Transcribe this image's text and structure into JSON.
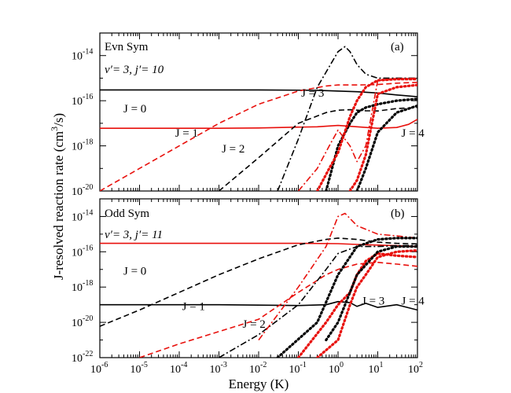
{
  "figure": {
    "ylabel_main": "J-resolved reaction rate (cm",
    "ylabel_exp": "3",
    "ylabel_end": "/s)",
    "xlabel": "Energy (K)"
  },
  "chart_data": [
    {
      "id": "a",
      "type": "line",
      "panel_label": "(a)",
      "title": "Evn Sym",
      "state_label": "v′= 3, j′= 10",
      "xscale": "log",
      "yscale": "log",
      "xlim": [
        1e-06,
        100
      ],
      "ylim": [
        1e-20,
        1e-13
      ],
      "yticks": [
        {
          "base": "10",
          "exp": "-20"
        },
        {
          "base": "10",
          "exp": "-18"
        },
        {
          "base": "10",
          "exp": "-16"
        },
        {
          "base": "10",
          "exp": "-14"
        }
      ],
      "annotations": [
        {
          "text": "J = 0",
          "at": [
            1e-06,
            3e-17
          ]
        },
        {
          "text": "J = 1",
          "at": [
            2e-05,
            2.5e-18
          ]
        },
        {
          "text": "J = 2",
          "at": [
            0.0003,
            5e-19
          ]
        },
        {
          "text": "J = 3",
          "at": [
            0.03,
            1.5e-16
          ]
        },
        {
          "text": "J = 4",
          "at": [
            10,
            2.5e-18
          ]
        }
      ],
      "series": [
        {
          "name": "J = 0",
          "color": "#000000",
          "dash": "solid",
          "x": [
            1e-06,
            0.0001,
            0.01,
            0.3,
            3,
            10,
            30,
            100
          ],
          "y": [
            3e-16,
            3e-16,
            3e-16,
            2.9e-16,
            2.5e-16,
            2.2e-16,
            1.8e-16,
            1.5e-16
          ]
        },
        {
          "name": "J = 0",
          "color": "#e8100c",
          "dash": "solid",
          "x": [
            1e-06,
            0.001,
            0.01,
            0.3,
            1,
            3,
            10,
            30,
            60,
            100
          ],
          "y": [
            6e-18,
            6e-18,
            6.2e-18,
            7e-18,
            8e-18,
            7e-18,
            6e-18,
            6.5e-18,
            9e-18,
            1.5e-17
          ]
        },
        {
          "name": "J = 1",
          "color": "#000000",
          "dash": "dashed",
          "x": [
            0.001,
            0.01,
            0.1,
            0.5,
            1,
            2,
            5,
            10,
            30,
            100
          ],
          "y": [
            1e-20,
            3e-19,
            1e-17,
            3e-17,
            3.8e-17,
            4e-17,
            3.6e-17,
            3.5e-17,
            4.5e-17,
            5e-17
          ]
        },
        {
          "name": "J = 1",
          "color": "#e8100c",
          "dash": "dashed",
          "x": [
            1e-06,
            0.0001,
            0.001,
            0.01,
            0.1,
            0.5,
            1,
            3,
            10,
            30,
            100
          ],
          "y": [
            1e-20,
            1e-18,
            1e-17,
            7e-17,
            2.7e-16,
            4.5e-16,
            5e-16,
            5e-16,
            5.2e-16,
            6e-16,
            6.5e-16
          ]
        },
        {
          "name": "J = 2",
          "color": "#000000",
          "dash": "dashdot",
          "x": [
            0.03,
            0.1,
            0.3,
            1,
            1.5,
            2,
            3,
            5,
            10,
            30,
            100
          ],
          "y": [
            1e-20,
            2e-18,
            4e-16,
            1.5e-14,
            2.5e-14,
            1.5e-14,
            4e-15,
            1.5e-15,
            1e-15,
            1e-15,
            1e-15
          ]
        },
        {
          "name": "J = 2",
          "color": "#e8100c",
          "dash": "dashdot",
          "x": [
            0.1,
            0.3,
            0.6,
            1,
            2,
            3,
            5,
            10,
            30,
            100
          ],
          "y": [
            1e-20,
            1e-19,
            1e-18,
            5e-18,
            1e-18,
            2e-19,
            1e-18,
            8e-16,
            9e-16,
            1e-15
          ]
        },
        {
          "name": "J = 3",
          "color": "#000000",
          "dash": "dotted",
          "x": [
            0.5,
            1,
            2,
            3,
            5,
            10,
            30,
            100
          ],
          "y": [
            1e-20,
            1e-18,
            1e-17,
            3e-17,
            5e-17,
            7e-17,
            1e-16,
            1.2e-16
          ]
        },
        {
          "name": "J = 3",
          "color": "#e8100c",
          "dash": "dotted",
          "x": [
            0.3,
            0.6,
            1,
            2,
            3,
            5,
            10,
            30,
            100
          ],
          "y": [
            1e-20,
            1e-19,
            5e-19,
            2e-17,
            1e-16,
            4e-16,
            8e-16,
            9e-16,
            9e-16
          ]
        },
        {
          "name": "J = 4",
          "color": "#000000",
          "dash": "dotted",
          "x": [
            3,
            5,
            10,
            30,
            100
          ],
          "y": [
            1e-20,
            1e-19,
            4e-18,
            3e-17,
            6e-17
          ]
        },
        {
          "name": "J = 4",
          "color": "#e8100c",
          "dash": "dotted",
          "x": [
            2,
            3,
            5,
            10,
            30,
            100
          ],
          "y": [
            1e-20,
            3e-20,
            4e-19,
            2e-16,
            4e-16,
            5e-16
          ]
        }
      ]
    },
    {
      "id": "b",
      "type": "line",
      "panel_label": "(b)",
      "title": "Odd Sym",
      "state_label": "v′= 3, j′= 11",
      "xscale": "log",
      "yscale": "log",
      "xlim": [
        1e-06,
        100
      ],
      "ylim": [
        1e-22,
        1e-13
      ],
      "yticks": [
        {
          "base": "10",
          "exp": "-22"
        },
        {
          "base": "10",
          "exp": "-20"
        },
        {
          "base": "10",
          "exp": "-18"
        },
        {
          "base": "10",
          "exp": "-16"
        },
        {
          "base": "10",
          "exp": "-14"
        }
      ],
      "xticks": [
        {
          "base": "10",
          "exp": "-6"
        },
        {
          "base": "10",
          "exp": "-5"
        },
        {
          "base": "10",
          "exp": "-4"
        },
        {
          "base": "10",
          "exp": "-3"
        },
        {
          "base": "10",
          "exp": "-2"
        },
        {
          "base": "10",
          "exp": "-1"
        },
        {
          "base": "10",
          "exp": "0"
        },
        {
          "base": "10",
          "exp": "1"
        },
        {
          "base": "10",
          "exp": "2"
        }
      ],
      "annotations": [
        {
          "text": "J = 0",
          "at": [
            1e-06,
            5e-18
          ]
        },
        {
          "text": "J = 1",
          "at": [
            3e-05,
            5e-20
          ]
        },
        {
          "text": "J = 2",
          "at": [
            0.001,
            5e-21
          ]
        },
        {
          "text": "J = 3",
          "at": [
            1,
            1e-19
          ]
        },
        {
          "text": "J = 4",
          "at": [
            10,
            1e-19
          ]
        }
      ],
      "series": [
        {
          "name": "J = 0",
          "color": "#e8100c",
          "dash": "solid",
          "x": [
            1e-06,
            0.001,
            0.1,
            1,
            3,
            10,
            30,
            100
          ],
          "y": [
            3e-16,
            3e-16,
            3e-16,
            2.9e-16,
            2.6e-16,
            2.4e-16,
            2.2e-16,
            2e-16
          ]
        },
        {
          "name": "J = 0",
          "color": "#000000",
          "dash": "solid",
          "x": [
            1e-06,
            0.001,
            0.1,
            0.5,
            1,
            2,
            3,
            5,
            10,
            30,
            100
          ],
          "y": [
            1e-19,
            1e-19,
            9e-20,
            1e-19,
            1.5e-19,
            1.3e-19,
            8e-20,
            1.2e-19,
            7e-20,
            1e-19,
            5e-20
          ]
        },
        {
          "name": "J = 1",
          "color": "#000000",
          "dash": "dashed",
          "x": [
            1e-06,
            1e-05,
            0.0001,
            0.001,
            0.01,
            0.1,
            0.5,
            1,
            3,
            10,
            30,
            100
          ],
          "y": [
            6e-21,
            5e-20,
            5e-19,
            5e-18,
            4e-17,
            2.5e-16,
            5e-16,
            6e-16,
            5e-16,
            3.5e-16,
            3e-16,
            2.8e-16
          ]
        },
        {
          "name": "J = 1",
          "color": "#e8100c",
          "dash": "dashed",
          "x": [
            1e-05,
            0.0001,
            0.001,
            0.01,
            0.1,
            0.5,
            1,
            3,
            10,
            30,
            100
          ],
          "y": [
            1e-22,
            6e-22,
            3e-21,
            1.5e-20,
            5e-19,
            5e-18,
            1e-17,
            2e-17,
            2.5e-17,
            2e-17,
            1.5e-17
          ]
        },
        {
          "name": "J = 2",
          "color": "#000000",
          "dash": "dashdot",
          "x": [
            0.001,
            0.01,
            0.1,
            0.5,
            1,
            3,
            10,
            30,
            100
          ],
          "y": [
            1e-22,
            2e-21,
            1e-19,
            1e-17,
            8e-17,
            2e-16,
            2e-16,
            2.2e-16,
            2.3e-16
          ]
        },
        {
          "name": "J = 2",
          "color": "#e8100c",
          "dash": "dashdot",
          "x": [
            0.01,
            0.1,
            0.5,
            1,
            1.5,
            3,
            10,
            30,
            100
          ],
          "y": [
            1e-21,
            1e-18,
            2e-16,
            1e-14,
            1.5e-14,
            3e-15,
            1e-15,
            8e-16,
            6e-16
          ]
        },
        {
          "name": "J = 3",
          "color": "#000000",
          "dash": "dotted",
          "x": [
            0.03,
            0.3,
            1,
            3,
            10,
            30,
            100
          ],
          "y": [
            1e-22,
            1e-20,
            5e-18,
            2e-16,
            5e-16,
            6e-16,
            6e-16
          ]
        },
        {
          "name": "J = 3",
          "color": "#e8100c",
          "dash": "dotted",
          "x": [
            0.1,
            0.5,
            1,
            2,
            3,
            5,
            10,
            30,
            100
          ],
          "y": [
            1e-22,
            1e-20,
            1e-19,
            5e-19,
            5e-18,
            3e-17,
            8e-17,
            6e-17,
            5e-17
          ]
        },
        {
          "name": "J = 4",
          "color": "#000000",
          "dash": "dotted",
          "x": [
            0.5,
            1,
            3,
            10,
            30,
            100
          ],
          "y": [
            1e-21,
            1e-20,
            5e-18,
            1e-16,
            2e-16,
            2e-16
          ]
        },
        {
          "name": "J = 4",
          "color": "#e8100c",
          "dash": "dotted",
          "x": [
            0.3,
            1,
            2,
            3,
            5,
            10,
            30,
            100
          ],
          "y": [
            1e-22,
            1e-21,
            1e-19,
            1e-18,
            5e-18,
            5e-17,
            1e-16,
            1.2e-16
          ]
        }
      ]
    }
  ]
}
